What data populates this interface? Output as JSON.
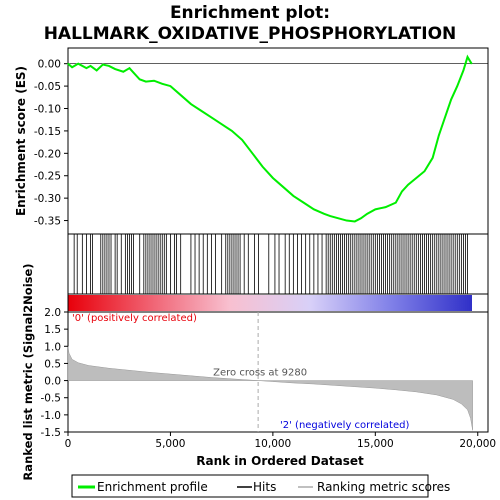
{
  "chart_data": {
    "type": "line",
    "title": "Enrichment plot:",
    "subtitle": "HALLMARK_OXIDATIVE_PHOSPHORYLATION",
    "es_panel": {
      "ylabel": "Enrichment score (ES)",
      "ylim": [
        -0.38,
        0.035
      ],
      "yticks": [
        "0.00",
        "-0.05",
        "-0.10",
        "-0.15",
        "-0.20",
        "-0.25",
        "-0.30",
        "-0.35"
      ],
      "ytick_values": [
        0,
        -0.05,
        -0.1,
        -0.15,
        -0.2,
        -0.25,
        -0.3,
        -0.35
      ],
      "zero_line": true,
      "series": [
        {
          "name": "Enrichment profile",
          "color": "#00ee00",
          "x": [
            0,
            200,
            500,
            900,
            1100,
            1400,
            1700,
            2000,
            2300,
            2700,
            3000,
            3200,
            3500,
            3800,
            4200,
            4600,
            5000,
            5500,
            6000,
            6500,
            7000,
            7500,
            8000,
            8500,
            9000,
            9500,
            10000,
            10500,
            11000,
            11500,
            12000,
            12500,
            12800,
            13200,
            13600,
            14000,
            14300,
            14600,
            15000,
            15500,
            16000,
            16300,
            16600,
            17000,
            17400,
            17800,
            18100,
            18400,
            18700,
            19000,
            19300,
            19500,
            19700
          ],
          "y": [
            0.0,
            -0.008,
            0.0,
            -0.01,
            -0.005,
            -0.015,
            -0.002,
            -0.005,
            -0.012,
            -0.018,
            -0.01,
            -0.02,
            -0.035,
            -0.04,
            -0.038,
            -0.045,
            -0.05,
            -0.07,
            -0.09,
            -0.105,
            -0.12,
            -0.135,
            -0.15,
            -0.17,
            -0.2,
            -0.23,
            -0.255,
            -0.275,
            -0.295,
            -0.31,
            -0.325,
            -0.335,
            -0.34,
            -0.345,
            -0.35,
            -0.352,
            -0.345,
            -0.335,
            -0.325,
            -0.32,
            -0.31,
            -0.285,
            -0.27,
            -0.255,
            -0.24,
            -0.21,
            -0.16,
            -0.12,
            -0.08,
            -0.05,
            -0.015,
            0.015,
            0.0
          ]
        }
      ]
    },
    "hits_panel": {
      "legend_name": "Hits",
      "hit_positions": [
        300,
        450,
        700,
        900,
        1100,
        1200,
        1600,
        1700,
        1800,
        1900,
        2000,
        2100,
        2300,
        2400,
        2600,
        2800,
        2900,
        3000,
        3100,
        3200,
        3500,
        3700,
        3800,
        3900,
        4000,
        4100,
        4200,
        4300,
        4400,
        4500,
        4600,
        4700,
        4800,
        5000,
        5200,
        5300,
        5500,
        6000,
        6200,
        6400,
        6600,
        6800,
        7000,
        7200,
        7500,
        7700,
        7800,
        7900,
        8000,
        8100,
        8200,
        8300,
        8400,
        8600,
        8800,
        9100,
        9300,
        9800,
        10100,
        10300,
        10600,
        10800,
        11000,
        11200,
        11400,
        11600,
        11800,
        12000,
        12200,
        12400,
        12600,
        12700,
        12800,
        12900,
        13000,
        13100,
        13200,
        13300,
        13400,
        13500,
        13600,
        13700,
        13800,
        13900,
        14000,
        14100,
        14200,
        14300,
        14400,
        14500,
        14600,
        14700,
        14800,
        14900,
        15000,
        15100,
        15200,
        15300,
        15400,
        15500,
        15600,
        15700,
        15800,
        15900,
        16000,
        16100,
        16200,
        16300,
        16400,
        16500,
        16600,
        16700,
        16800,
        16900,
        17000,
        17100,
        17200,
        17300,
        17400,
        17500,
        17600,
        17700,
        17800,
        17900,
        18000,
        18100,
        18200,
        18300,
        18400,
        18500,
        18600,
        18700,
        18800,
        18900,
        19000,
        19100,
        19200,
        19300,
        19400,
        19500
      ],
      "colorbar_stops": [
        "#e8000a",
        "#f06070",
        "#f8c0d0",
        "#d8d0f8",
        "#8080e8",
        "#3030c8"
      ]
    },
    "metric_panel": {
      "ylabel": "Ranked list metric (Signal2Noise)",
      "legend_name": "Ranking metric scores",
      "ylim": [
        -1.5,
        2.0
      ],
      "yticks": [
        "2.0",
        "1.5",
        "1.0",
        "0.5",
        "0.0",
        "-0.5",
        "-1.0",
        "-1.5"
      ],
      "ytick_values": [
        2.0,
        1.5,
        1.0,
        0.5,
        0.0,
        -0.5,
        -1.0,
        -1.5
      ],
      "x": [
        0,
        50,
        200,
        500,
        1000,
        2000,
        3000,
        4000,
        5000,
        6000,
        7000,
        8000,
        9280,
        10000,
        11000,
        12000,
        13000,
        14000,
        15000,
        16000,
        17000,
        18000,
        18800,
        19200,
        19500,
        19650,
        19750
      ],
      "y": [
        1.0,
        0.8,
        0.62,
        0.52,
        0.44,
        0.36,
        0.3,
        0.24,
        0.19,
        0.14,
        0.09,
        0.05,
        0.0,
        -0.03,
        -0.07,
        -0.1,
        -0.14,
        -0.18,
        -0.22,
        -0.27,
        -0.33,
        -0.42,
        -0.55,
        -0.68,
        -0.85,
        -1.1,
        -1.45
      ],
      "zero_cross_label": "Zero cross at 9280",
      "zero_cross": 9280,
      "positive_label": "'0' (positively correlated)",
      "negative_label": "'2' (negatively correlated)",
      "positive_color": "#e8000a",
      "negative_color": "#0000dd"
    },
    "xlabel": "Rank in Ordered Dataset",
    "xlim": [
      0,
      20500
    ],
    "xticks": [
      "0",
      "5,000",
      "10,000",
      "15,000",
      "20,000"
    ],
    "xtick_values": [
      0,
      5000,
      10000,
      15000,
      20000
    ],
    "legend": {
      "placement": "bottom",
      "items": [
        "Enrichment profile",
        "Hits",
        "Ranking metric scores"
      ],
      "colors": [
        "#00ee00",
        "#000000",
        "#c0c0c0"
      ]
    }
  }
}
